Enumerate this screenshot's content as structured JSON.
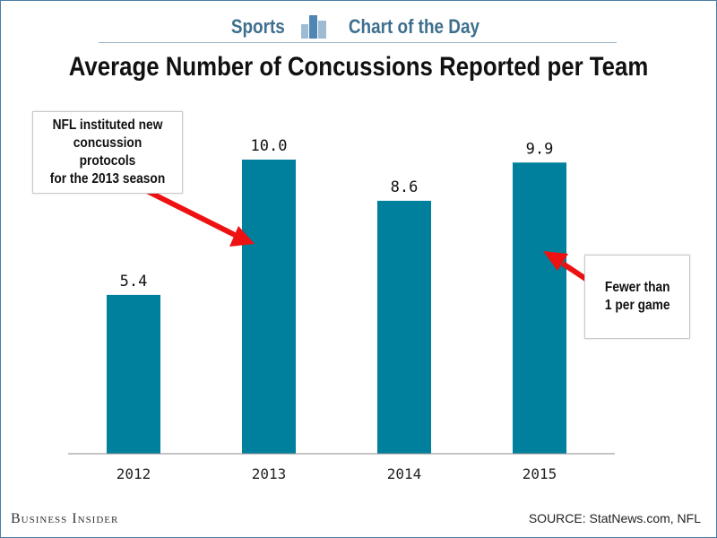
{
  "header": {
    "left_word": "Sports",
    "right_word": "Chart of the Day",
    "logo_icon": "bar-chart-logo-icon"
  },
  "chart_data": {
    "type": "bar",
    "title": "Average Number of Concussions Reported per Team",
    "categories": [
      "2012",
      "2013",
      "2014",
      "2015"
    ],
    "values": [
      5.4,
      10.0,
      8.6,
      9.9
    ],
    "data_labels": [
      "5.4",
      "10.0",
      "8.6",
      "9.9"
    ],
    "ylim": [
      0,
      10.0
    ],
    "grid": false,
    "bar_color": "#00809d",
    "annotations": [
      {
        "text": "NFL instituted new\nconcussion protocols\nfor the 2013 season",
        "points_to": "2013"
      },
      {
        "text": "Fewer than\n1 per game",
        "points_to": "2015"
      }
    ]
  },
  "footer": {
    "brand": "Business Insider",
    "source": "SOURCE: StatNews.com, NFL"
  },
  "colors": {
    "accent": "#3e6f8e",
    "arrow": "#ee1111"
  }
}
